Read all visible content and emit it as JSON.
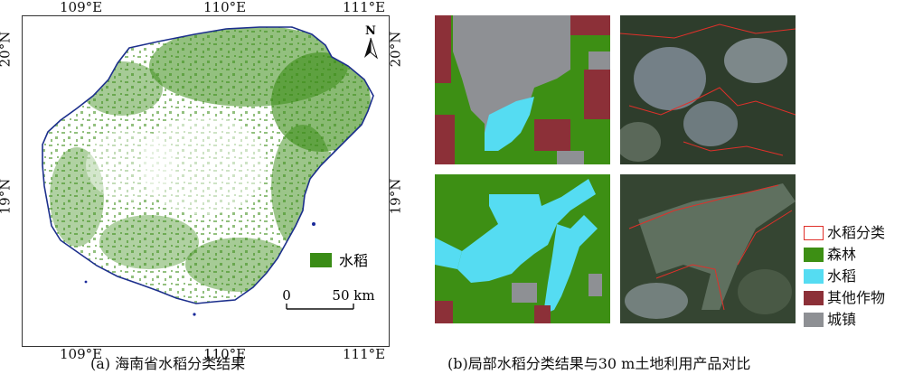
{
  "map_a": {
    "lon_ticks_top": [
      "109°E",
      "110°E",
      "111°E"
    ],
    "lon_ticks_bottom": [
      "109°E",
      "110°E",
      "111°E"
    ],
    "lat_ticks_left": [
      "20°N",
      "19°N"
    ],
    "lat_ticks_right": [
      "20°N",
      "19°N"
    ],
    "north_label": "N",
    "legend_label": "水稻",
    "scalebar_start": "0",
    "scalebar_end": "50 km",
    "caption": "(a)  海南省水稻分类结果",
    "colors": {
      "rice": "#3a8c16",
      "coast": "#1c2f8c",
      "water": "#1a2a9a"
    }
  },
  "panel_b": {
    "caption": "(b)局部水稻分类结果与30 m土地利用产品对比",
    "legend": [
      {
        "label": "水稻分类",
        "color": "#ffffff",
        "border": "#e0302a"
      },
      {
        "label": "森林",
        "color": "#3d8f14",
        "border": "#3d8f14"
      },
      {
        "label": "水稻",
        "color": "#55dcf2",
        "border": "#55dcf2"
      },
      {
        "label": "其他作物",
        "color": "#8c3038",
        "border": "#8c3038"
      },
      {
        "label": "城镇",
        "color": "#8e9094",
        "border": "#8e9094"
      }
    ]
  }
}
